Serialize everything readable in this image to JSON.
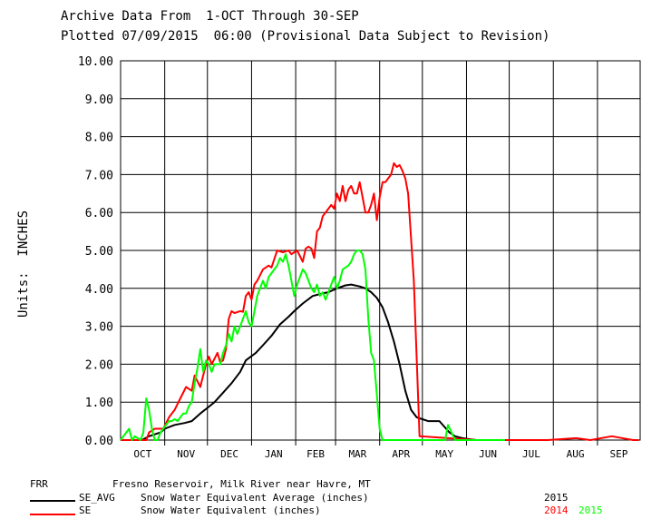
{
  "header": {
    "line1": "Archive Data From  1-OCT Through 30-SEP",
    "line2": "Plotted 07/09/2015  06:00 (Provisional Data Subject to Revision)"
  },
  "footer": {
    "station_code": "FRR",
    "station_name": "Fresno Reservoir, Milk River near Havre, MT",
    "legend": [
      {
        "code": "SE_AVG",
        "description": "Snow Water Equivalent Average (inches)",
        "years": [
          {
            "label": "2015",
            "color": "#000000"
          }
        ],
        "line_color": "#000000"
      },
      {
        "code": "SE",
        "description": "Snow Water Equivalent (inches)",
        "years": [
          {
            "label": "2014",
            "color": "#ff0000"
          },
          {
            "label": "2015",
            "color": "#00ff00"
          }
        ],
        "line_color": "#ff0000"
      }
    ]
  },
  "chart_data": {
    "type": "line",
    "title": "",
    "ylabel": "Units:  INCHES",
    "xlabel": "",
    "ylim": [
      0,
      10
    ],
    "yticks": [
      "0.00",
      "1.00",
      "2.00",
      "3.00",
      "4.00",
      "5.00",
      "6.00",
      "7.00",
      "8.00",
      "9.00",
      "10.00"
    ],
    "categories": [
      "OCT",
      "NOV",
      "DEC",
      "JAN",
      "FEB",
      "MAR",
      "APR",
      "MAY",
      "JUN",
      "JUL",
      "AUG",
      "SEP"
    ],
    "grid": true,
    "x_unit": "day of water year (Oct 1 = 0)",
    "series": [
      {
        "name": "SE_AVG",
        "color": "#000000",
        "x": [
          0,
          15,
          20,
          28,
          31,
          38,
          45,
          50,
          56,
          61,
          66,
          72,
          78,
          84,
          88,
          95,
          100,
          106,
          112,
          118,
          122,
          128,
          135,
          140,
          146,
          152,
          158,
          162,
          168,
          172,
          176,
          180,
          184,
          188,
          192,
          196,
          200,
          204,
          208,
          212,
          216,
          220,
          224,
          231,
          235,
          240,
          246,
          250,
          255,
          260,
          266,
          270,
          278,
          287
        ],
        "y": [
          0,
          0,
          0.1,
          0.2,
          0.3,
          0.4,
          0.45,
          0.5,
          0.7,
          0.85,
          1.0,
          1.25,
          1.5,
          1.8,
          2.1,
          2.3,
          2.5,
          2.75,
          3.05,
          3.25,
          3.4,
          3.6,
          3.8,
          3.85,
          3.9,
          4.0,
          4.08,
          4.1,
          4.05,
          4.0,
          3.9,
          3.75,
          3.5,
          3.1,
          2.6,
          2.0,
          1.3,
          0.8,
          0.6,
          0.55,
          0.5,
          0.5,
          0.5,
          0.2,
          0.1,
          0.05,
          0.02,
          0.0,
          0.0,
          0.0,
          0.0,
          0.0,
          0.0,
          0.0
        ]
      },
      {
        "name": "SE 2014",
        "color": "#ff0000",
        "x": [
          0,
          10,
          16,
          18,
          20,
          24,
          26,
          30,
          34,
          38,
          42,
          46,
          50,
          52,
          56,
          60,
          62,
          64,
          68,
          70,
          72,
          74,
          76,
          78,
          80,
          84,
          86,
          88,
          90,
          92,
          94,
          96,
          100,
          104,
          106,
          110,
          114,
          118,
          120,
          124,
          128,
          130,
          132,
          134,
          136,
          138,
          140,
          142,
          144,
          146,
          148,
          150,
          152,
          154,
          156,
          158,
          160,
          162,
          164,
          166,
          168,
          170,
          172,
          174,
          176,
          178,
          180,
          182,
          184,
          186,
          188,
          190,
          192,
          194,
          196,
          198,
          200,
          202,
          206,
          210,
          250,
          275,
          300,
          320,
          330,
          345,
          360,
          364
        ],
        "y": [
          0,
          0,
          0,
          0,
          0.2,
          0.3,
          0.3,
          0.3,
          0.6,
          0.8,
          1.1,
          1.4,
          1.3,
          1.7,
          1.4,
          2.0,
          2.2,
          2.0,
          2.3,
          2.05,
          2.1,
          2.4,
          3.2,
          3.4,
          3.35,
          3.4,
          3.38,
          3.8,
          3.9,
          3.7,
          4.1,
          4.2,
          4.5,
          4.6,
          4.55,
          5.0,
          4.95,
          5.0,
          4.9,
          5.0,
          4.7,
          5.05,
          5.1,
          5.05,
          4.8,
          5.5,
          5.6,
          5.9,
          6.0,
          6.1,
          6.2,
          6.1,
          6.5,
          6.3,
          6.7,
          6.3,
          6.6,
          6.7,
          6.5,
          6.5,
          6.8,
          6.4,
          6.0,
          6.0,
          6.2,
          6.5,
          5.8,
          6.4,
          6.8,
          6.8,
          6.9,
          7.0,
          7.3,
          7.2,
          7.25,
          7.1,
          6.9,
          6.5,
          4.2,
          0.1,
          0.0,
          0.0,
          0.0,
          0.05,
          0.0,
          0.1,
          0.0,
          0.0
        ]
      },
      {
        "name": "SE 2015",
        "color": "#00ff00",
        "x": [
          0,
          6,
          8,
          10,
          14,
          16,
          18,
          20,
          22,
          24,
          26,
          28,
          30,
          32,
          34,
          36,
          38,
          40,
          42,
          44,
          46,
          48,
          50,
          52,
          54,
          56,
          58,
          60,
          62,
          64,
          66,
          70,
          72,
          74,
          76,
          78,
          80,
          82,
          84,
          86,
          88,
          90,
          92,
          94,
          96,
          98,
          100,
          102,
          104,
          106,
          108,
          110,
          112,
          114,
          116,
          118,
          120,
          122,
          124,
          126,
          128,
          130,
          132,
          134,
          136,
          138,
          140,
          142,
          144,
          146,
          148,
          150,
          152,
          154,
          156,
          160,
          162,
          164,
          166,
          168,
          170,
          172,
          174,
          176,
          178,
          180,
          182,
          184,
          186,
          188,
          190,
          192,
          194,
          196,
          198,
          200,
          202,
          210,
          220,
          226,
          228,
          230,
          235,
          245,
          250,
          255,
          260,
          270
        ],
        "y": [
          0,
          0.3,
          0.0,
          0.1,
          0.0,
          0.2,
          1.1,
          0.8,
          0.3,
          0.0,
          0.0,
          0.2,
          0.3,
          0.4,
          0.5,
          0.5,
          0.55,
          0.5,
          0.6,
          0.7,
          0.7,
          0.9,
          1.0,
          1.5,
          1.9,
          2.4,
          1.8,
          2.1,
          2.0,
          1.8,
          2.0,
          2.0,
          2.3,
          2.5,
          2.8,
          2.6,
          3.0,
          2.8,
          3.0,
          3.2,
          3.4,
          3.1,
          3.0,
          3.4,
          3.8,
          4.0,
          4.2,
          4.0,
          4.3,
          4.4,
          4.5,
          4.6,
          4.8,
          4.7,
          4.9,
          4.6,
          4.2,
          3.8,
          4.1,
          4.3,
          4.5,
          4.4,
          4.2,
          4.0,
          3.9,
          4.1,
          3.8,
          3.9,
          3.7,
          3.9,
          4.1,
          4.3,
          4.0,
          4.2,
          4.5,
          4.6,
          4.7,
          4.9,
          5.0,
          5.0,
          4.9,
          4.5,
          3.2,
          2.3,
          2.1,
          1.2,
          0.3,
          0.0,
          0.0,
          0.0,
          0.0,
          0.0,
          0.0,
          0.0,
          0.0,
          0.0,
          0.0,
          0.0,
          0.0,
          0.0,
          0.0,
          0.4,
          0.0,
          0.0,
          0.0,
          0.0,
          0.0,
          0.0
        ]
      }
    ]
  }
}
